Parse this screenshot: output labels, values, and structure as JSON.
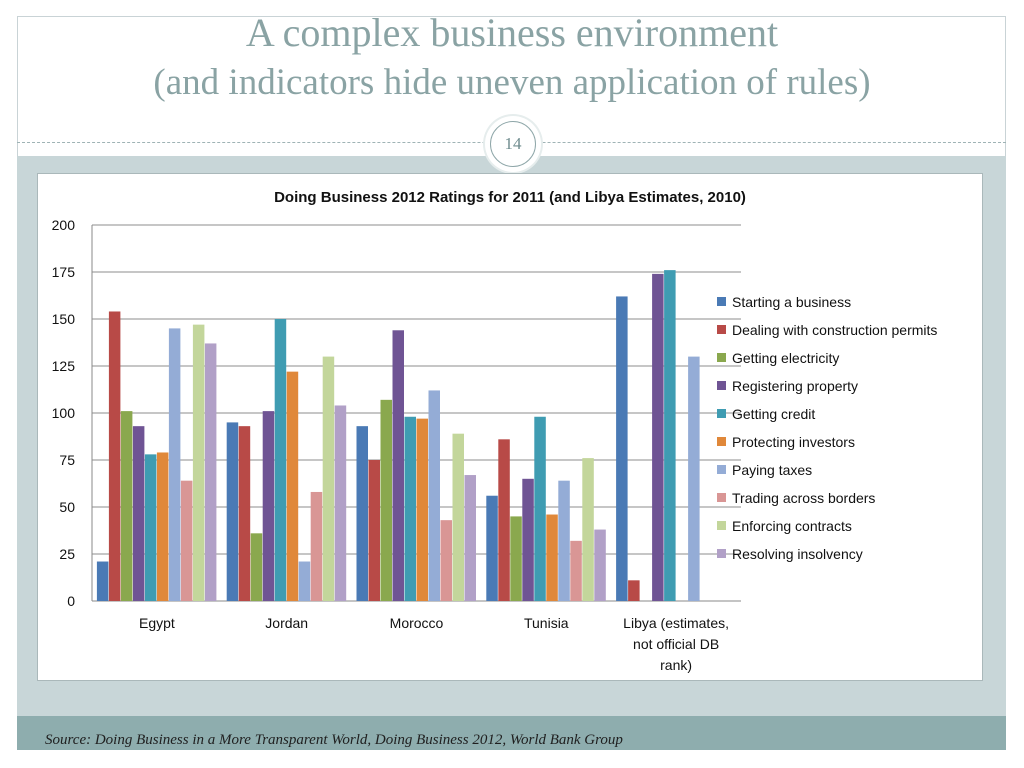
{
  "slide": {
    "title_line1": "A complex business environment",
    "title_line2": "(and indicators hide uneven application of rules)",
    "page_number": "14",
    "source": "Source:  Doing Business in a More Transparent World,  Doing Business 2012, World Bank Group"
  },
  "colors": {
    "title": "#8aa3a4",
    "band": "#c8d6d8",
    "footer": "#8eadae"
  },
  "chart_data": {
    "type": "bar",
    "title": "Doing Business 2012 Ratings for 2011 (and Libya Estimates, 2010)",
    "xlabel": "",
    "ylabel": "",
    "categories": [
      "Egypt",
      "Jordan",
      "Morocco",
      "Tunisia",
      "Libya (estimates, not official DB rank)"
    ],
    "ylim": [
      0,
      200
    ],
    "yticks": [
      0,
      25,
      50,
      75,
      100,
      125,
      150,
      175,
      200
    ],
    "grid": true,
    "legend_position": "right",
    "series": [
      {
        "name": "Starting a business",
        "color": "#4a7ab5",
        "values": [
          21,
          95,
          93,
          56,
          162
        ]
      },
      {
        "name": "Dealing with construction permits",
        "color": "#b84a47",
        "values": [
          154,
          93,
          75,
          86,
          11
        ]
      },
      {
        "name": "Getting electricity",
        "color": "#8aa84e",
        "values": [
          101,
          36,
          107,
          45,
          null
        ]
      },
      {
        "name": "Registering property",
        "color": "#6f5494",
        "values": [
          93,
          101,
          144,
          65,
          174
        ]
      },
      {
        "name": "Getting credit",
        "color": "#3f9cb2",
        "values": [
          78,
          150,
          98,
          98,
          176
        ]
      },
      {
        "name": "Protecting investors",
        "color": "#e0883a",
        "values": [
          79,
          122,
          97,
          46,
          null
        ]
      },
      {
        "name": "Paying taxes",
        "color": "#94acd6",
        "values": [
          145,
          21,
          112,
          64,
          130
        ]
      },
      {
        "name": "Trading across borders",
        "color": "#d99695",
        "values": [
          64,
          58,
          43,
          32,
          null
        ]
      },
      {
        "name": "Enforcing contracts",
        "color": "#c3d69b",
        "values": [
          147,
          130,
          89,
          76,
          null
        ]
      },
      {
        "name": "Resolving insolvency",
        "color": "#b1a0c7",
        "values": [
          137,
          104,
          67,
          38,
          null
        ]
      }
    ]
  }
}
